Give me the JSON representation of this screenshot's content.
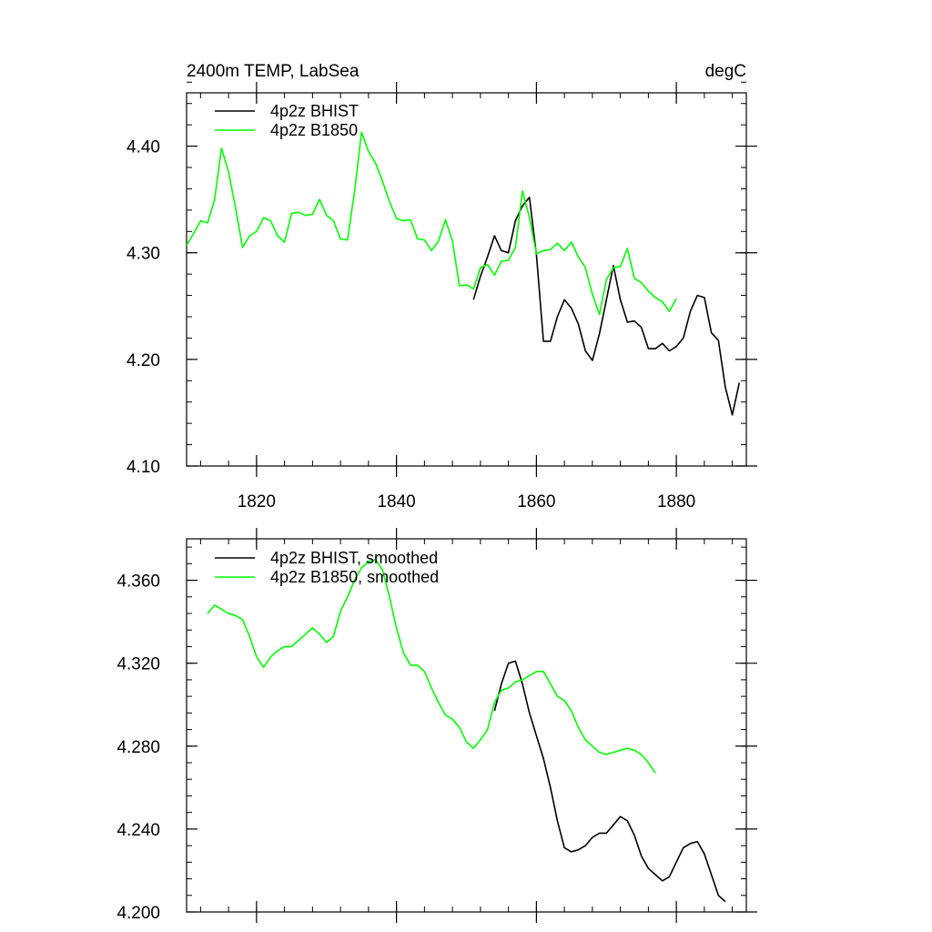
{
  "chart_data": [
    {
      "type": "line",
      "title": "2400m TEMP, LabSea",
      "units": "degC",
      "xlabel": "",
      "ylabel": "",
      "xlim": [
        1810,
        1890
      ],
      "ylim": [
        4.1,
        4.45
      ],
      "xticks": [
        1820,
        1840,
        1860,
        1880
      ],
      "xtick_labels": [
        "1820",
        "1840",
        "1860",
        "1880"
      ],
      "yticks": [
        4.1,
        4.2,
        4.3,
        4.4
      ],
      "ytick_labels": [
        "4.10",
        "4.20",
        "4.30",
        "4.40"
      ],
      "legend_position": "top-left",
      "series": [
        {
          "name": "4p2z BHIST",
          "color": "#000000",
          "x": [
            1851,
            1852,
            1853,
            1854,
            1855,
            1856,
            1857,
            1858,
            1859,
            1860,
            1861,
            1862,
            1863,
            1864,
            1865,
            1866,
            1867,
            1868,
            1869,
            1870,
            1871,
            1872,
            1873,
            1874,
            1875,
            1876,
            1877,
            1878,
            1879,
            1880,
            1881,
            1882,
            1883,
            1884,
            1885,
            1886,
            1887,
            1888,
            1889
          ],
          "values": [
            4.256,
            4.278,
            4.296,
            4.316,
            4.302,
            4.3,
            4.33,
            4.344,
            4.352,
            4.298,
            4.217,
            4.217,
            4.24,
            4.256,
            4.248,
            4.233,
            4.208,
            4.199,
            4.224,
            4.256,
            4.288,
            4.256,
            4.235,
            4.236,
            4.23,
            4.21,
            4.21,
            4.215,
            4.208,
            4.212,
            4.22,
            4.245,
            4.26,
            4.258,
            4.225,
            4.218,
            4.174,
            4.148,
            4.178
          ]
        },
        {
          "name": "4p2z B1850",
          "color": "#00ff00",
          "x": [
            1810,
            1811,
            1812,
            1813,
            1814,
            1815,
            1816,
            1817,
            1818,
            1819,
            1820,
            1821,
            1822,
            1823,
            1824,
            1825,
            1826,
            1827,
            1828,
            1829,
            1830,
            1831,
            1832,
            1833,
            1834,
            1835,
            1836,
            1837,
            1838,
            1839,
            1840,
            1841,
            1842,
            1843,
            1844,
            1845,
            1846,
            1847,
            1848,
            1849,
            1850,
            1851,
            1852,
            1853,
            1854,
            1855,
            1856,
            1857,
            1858,
            1859,
            1860,
            1861,
            1862,
            1863,
            1864,
            1865,
            1866,
            1867,
            1868,
            1869,
            1870,
            1871,
            1872,
            1873,
            1874,
            1875,
            1876,
            1877,
            1878,
            1879,
            1880
          ],
          "values": [
            4.307,
            4.318,
            4.33,
            4.328,
            4.35,
            4.398,
            4.376,
            4.342,
            4.305,
            4.316,
            4.32,
            4.333,
            4.33,
            4.316,
            4.31,
            4.337,
            4.338,
            4.335,
            4.336,
            4.35,
            4.335,
            4.33,
            4.313,
            4.312,
            4.357,
            4.413,
            4.395,
            4.384,
            4.367,
            4.348,
            4.332,
            4.33,
            4.331,
            4.313,
            4.312,
            4.302,
            4.311,
            4.331,
            4.311,
            4.269,
            4.27,
            4.266,
            4.286,
            4.289,
            4.279,
            4.292,
            4.293,
            4.305,
            4.358,
            4.333,
            4.299,
            4.302,
            4.303,
            4.309,
            4.302,
            4.31,
            4.296,
            4.286,
            4.261,
            4.242,
            4.275,
            4.286,
            4.287,
            4.304,
            4.276,
            4.272,
            4.264,
            4.258,
            4.254,
            4.245,
            4.257
          ]
        }
      ]
    },
    {
      "type": "line",
      "title": "",
      "xlabel": "",
      "ylabel": "",
      "xlim": [
        1810,
        1890
      ],
      "ylim": [
        4.2,
        4.38
      ],
      "xticks": [
        1820,
        1840,
        1860,
        1880
      ],
      "yticks": [
        4.2,
        4.24,
        4.28,
        4.32,
        4.36
      ],
      "ytick_labels": [
        "4.200",
        "4.240",
        "4.280",
        "4.320",
        "4.360"
      ],
      "legend_position": "top-left",
      "series": [
        {
          "name": "4p2z BHIST, smoothed",
          "color": "#000000",
          "x": [
            1854,
            1855,
            1856,
            1857,
            1858,
            1859,
            1860,
            1861,
            1862,
            1863,
            1864,
            1865,
            1866,
            1867,
            1868,
            1869,
            1870,
            1871,
            1872,
            1873,
            1874,
            1875,
            1876,
            1877,
            1878,
            1879,
            1880,
            1881,
            1882,
            1883,
            1884,
            1885,
            1886,
            1887
          ],
          "values": [
            4.297,
            4.31,
            4.32,
            4.321,
            4.31,
            4.296,
            4.285,
            4.274,
            4.26,
            4.244,
            4.231,
            4.229,
            4.23,
            4.232,
            4.236,
            4.238,
            4.238,
            4.242,
            4.246,
            4.244,
            4.237,
            4.227,
            4.221,
            4.218,
            4.215,
            4.217,
            4.224,
            4.231,
            4.233,
            4.234,
            4.228,
            4.218,
            4.208,
            4.205
          ]
        },
        {
          "name": "4p2z B1850, smoothed",
          "color": "#00ff00",
          "x": [
            1813,
            1814,
            1815,
            1816,
            1817,
            1818,
            1819,
            1820,
            1821,
            1822,
            1823,
            1824,
            1825,
            1826,
            1827,
            1828,
            1829,
            1830,
            1831,
            1832,
            1833,
            1834,
            1835,
            1836,
            1837,
            1838,
            1839,
            1840,
            1841,
            1842,
            1843,
            1844,
            1845,
            1846,
            1847,
            1848,
            1849,
            1850,
            1851,
            1852,
            1853,
            1854,
            1855,
            1856,
            1857,
            1858,
            1859,
            1860,
            1861,
            1862,
            1863,
            1864,
            1865,
            1866,
            1867,
            1868,
            1869,
            1870,
            1871,
            1872,
            1873,
            1874,
            1875,
            1876,
            1877
          ],
          "values": [
            4.344,
            4.348,
            4.346,
            4.344,
            4.343,
            4.341,
            4.333,
            4.323,
            4.318,
            4.323,
            4.326,
            4.328,
            4.328,
            4.331,
            4.334,
            4.337,
            4.334,
            4.33,
            4.333,
            4.345,
            4.352,
            4.36,
            4.366,
            4.369,
            4.37,
            4.365,
            4.352,
            4.337,
            4.325,
            4.319,
            4.319,
            4.316,
            4.308,
            4.301,
            4.295,
            4.293,
            4.289,
            4.282,
            4.279,
            4.283,
            4.288,
            4.301,
            4.307,
            4.308,
            4.311,
            4.312,
            4.314,
            4.316,
            4.316,
            4.31,
            4.304,
            4.302,
            4.297,
            4.289,
            4.283,
            4.28,
            4.277,
            4.276,
            4.277,
            4.278,
            4.279,
            4.278,
            4.276,
            4.272,
            4.267
          ]
        }
      ]
    }
  ]
}
